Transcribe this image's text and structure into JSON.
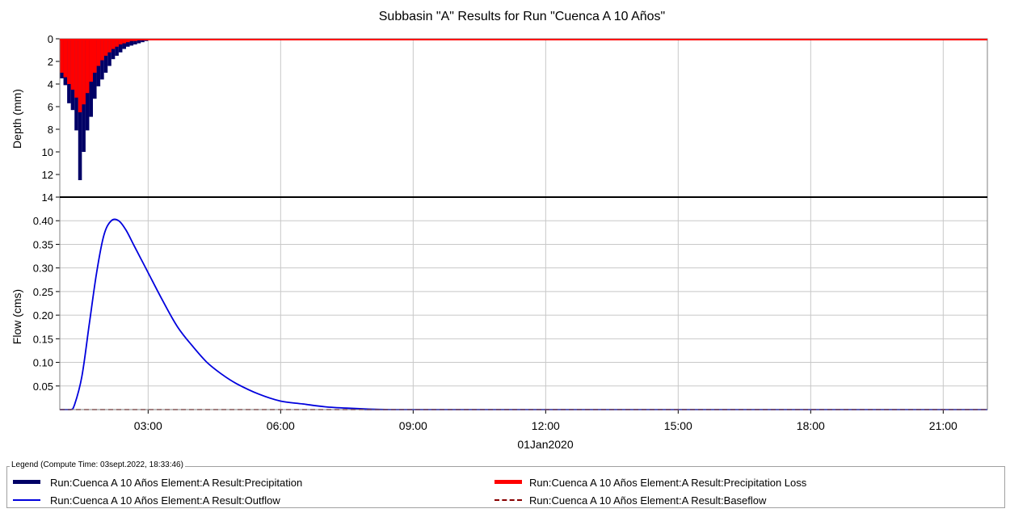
{
  "chart_data": [
    {
      "type": "bar",
      "panel": "precipitation",
      "title": "Subbasin \"A\" Results for Run \"Cuenca A 10 Años\"",
      "ylabel": "Depth (mm)",
      "y_inverted": true,
      "ylim": [
        0,
        14
      ],
      "yticks": [
        0,
        2,
        4,
        6,
        8,
        10,
        12,
        14
      ],
      "interval_minutes": 5,
      "start_time": "01:00",
      "series": [
        {
          "name": "Run:Cuenca A 10 Años Element:A Result:Precipitation",
          "color": "#000066",
          "values": [
            3.5,
            4.1,
            5.7,
            6.3,
            8.1,
            12.5,
            10.0,
            8.1,
            6.9,
            5.3,
            4.2,
            3.6,
            3.0,
            2.4,
            1.8,
            1.5,
            1.2,
            0.9,
            0.7,
            0.6,
            0.5,
            0.4,
            0.3,
            0.2
          ]
        },
        {
          "name": "Run:Cuenca A 10 Años Element:A Result:Precipitation Loss",
          "color": "#ff0000",
          "values": [
            3.0,
            3.4,
            4.0,
            4.5,
            5.2,
            6.5,
            5.8,
            4.8,
            3.8,
            3.0,
            2.4,
            1.9,
            1.5,
            1.2,
            0.9,
            0.7,
            0.5,
            0.4,
            0.3,
            0.2,
            0.2,
            0.1,
            0.1,
            0.1
          ]
        }
      ]
    },
    {
      "type": "line",
      "panel": "flow",
      "ylabel": "Flow (cms)",
      "xlabel": "01Jan2020",
      "xlim": [
        "01:00",
        "22:00"
      ],
      "xticks": [
        "03:00",
        "06:00",
        "09:00",
        "12:00",
        "15:00",
        "18:00",
        "21:00"
      ],
      "ylim": [
        0,
        0.45
      ],
      "yticks": [
        0.05,
        0.1,
        0.15,
        0.2,
        0.25,
        0.3,
        0.35,
        0.4
      ],
      "ytick_labels": [
        "0.05",
        "0.10",
        "0.15",
        "0.20",
        "0.25",
        "0.30",
        "0.35",
        "0.40"
      ],
      "grid": true,
      "series": [
        {
          "name": "Run:Cuenca A 10 Años Element:A Result:Outflow",
          "color": "#0000dd",
          "x": [
            "01:00",
            "01:15",
            "01:20",
            "01:30",
            "01:40",
            "01:50",
            "02:00",
            "02:10",
            "02:20",
            "02:30",
            "02:40",
            "02:50",
            "03:00",
            "03:20",
            "03:40",
            "04:00",
            "04:20",
            "04:40",
            "05:00",
            "05:30",
            "06:00",
            "06:30",
            "07:00",
            "07:30",
            "08:00",
            "08:30",
            "09:00",
            "22:00"
          ],
          "y": [
            0,
            0,
            0.01,
            0.07,
            0.18,
            0.29,
            0.37,
            0.4,
            0.4,
            0.38,
            0.35,
            0.32,
            0.29,
            0.23,
            0.175,
            0.135,
            0.1,
            0.075,
            0.055,
            0.033,
            0.018,
            0.012,
            0.006,
            0.003,
            0.001,
            0,
            0,
            0
          ]
        },
        {
          "name": "Run:Cuenca A 10 Años Element:A Result:Baseflow",
          "color": "#880000",
          "dashed": true,
          "x": [
            "01:00",
            "22:00"
          ],
          "y": [
            0,
            0
          ]
        }
      ]
    }
  ],
  "legend": {
    "caption": "Legend (Compute Time: 03sept.2022, 18:33:46)",
    "items": [
      {
        "label": "Run:Cuenca A 10 Años Element:A Result:Precipitation",
        "color": "#000066",
        "style": "thick"
      },
      {
        "label": "Run:Cuenca A 10 Años Element:A Result:Precipitation Loss",
        "color": "#ff0000",
        "style": "thick"
      },
      {
        "label": "Run:Cuenca A 10 Años Element:A Result:Outflow",
        "color": "#0000dd",
        "style": "thin"
      },
      {
        "label": "Run:Cuenca A 10 Años Element:A Result:Baseflow",
        "color": "#880000",
        "style": "dashed"
      }
    ]
  }
}
